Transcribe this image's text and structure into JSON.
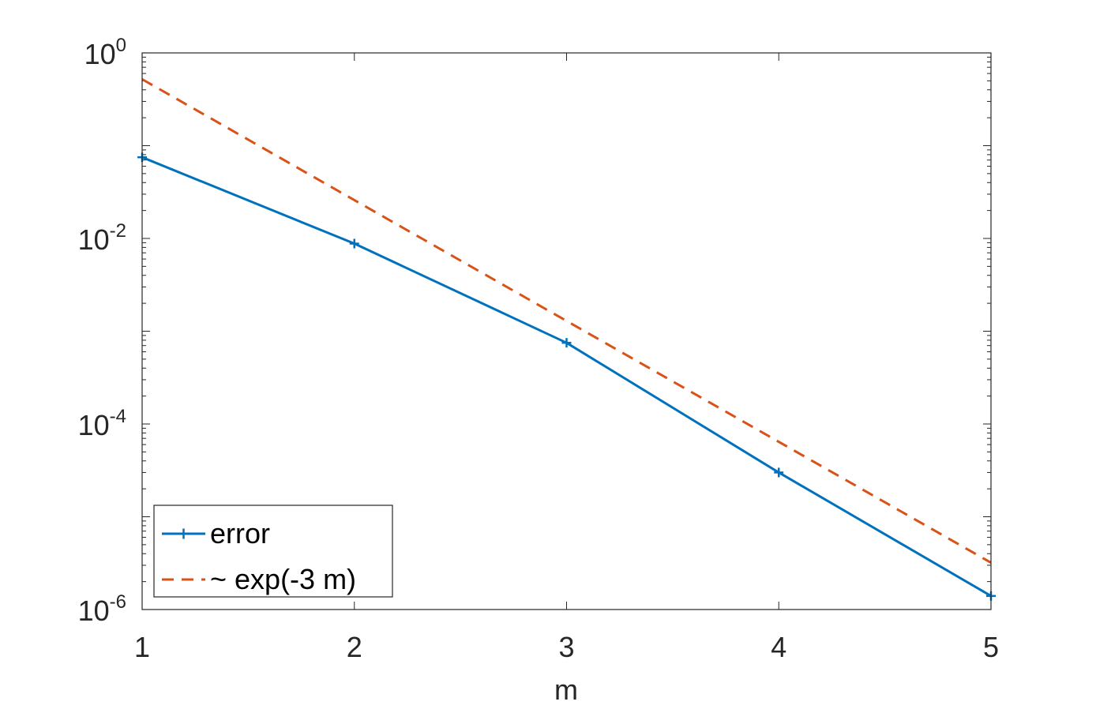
{
  "chart_data": {
    "type": "line",
    "title": "",
    "xlabel": "m",
    "ylabel": "",
    "xlim": [
      1,
      5
    ],
    "ylim": [
      1e-06,
      1
    ],
    "yscale": "log",
    "x_ticks": [
      1,
      2,
      3,
      4,
      5
    ],
    "y_ticks": [
      {
        "base": "10",
        "exp": "0",
        "value": 1
      },
      {
        "base": "10",
        "exp": "-2",
        "value": 0.01
      },
      {
        "base": "10",
        "exp": "-4",
        "value": 0.0001
      },
      {
        "base": "10",
        "exp": "-6",
        "value": 1e-06
      }
    ],
    "grid": false,
    "legend_position": "bottom-left",
    "series": [
      {
        "name": "error",
        "color": "#0072BD",
        "style": "solid",
        "marker": "+",
        "x": [
          1,
          2,
          3,
          4,
          5
        ],
        "y": [
          0.075,
          0.0088,
          0.00075,
          3e-05,
          1.4e-06
        ]
      },
      {
        "name": "~ exp(-3 m)",
        "color": "#D95319",
        "style": "dashed",
        "marker": "none",
        "x": [
          1,
          5
        ],
        "y": [
          0.52,
          3.2e-06
        ]
      }
    ]
  }
}
